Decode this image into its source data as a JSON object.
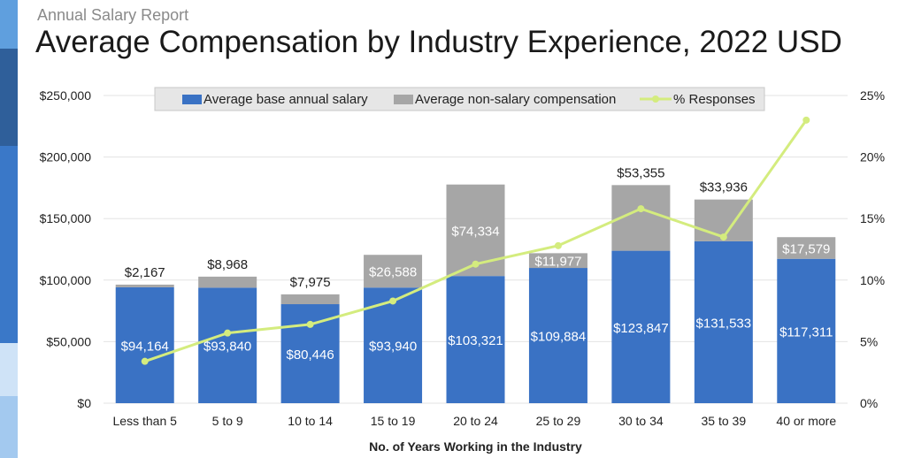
{
  "header": {
    "kicker": "Annual Salary Report",
    "title": "Average Compensation by Industry Experience, 2022 USD"
  },
  "colors": {
    "base_salary": "#3a72c4",
    "non_salary": "#a6a6a6",
    "responses": "#d4ec7e",
    "grid": "#e3e3e3",
    "side_strip": [
      "#5f9fde",
      "#2f5f9a",
      "#3a78c8",
      "#3a78c8",
      "#cfe3f7",
      "#a3c9ef"
    ]
  },
  "chart_data": {
    "type": "bar",
    "stacked": true,
    "categories": [
      "Less than 5",
      "5 to 9",
      "10 to 14",
      "15 to 19",
      "20 to 24",
      "25 to 29",
      "30 to 34",
      "35 to 39",
      "40 or more"
    ],
    "series": [
      {
        "name": "Average base annual salary",
        "kind": "bar",
        "axis": "left",
        "values": [
          94164,
          93840,
          80446,
          93940,
          103321,
          109884,
          123847,
          131533,
          117311
        ],
        "labels": [
          "$94,164",
          "$93,840",
          "$80,446",
          "$93,940",
          "$103,321",
          "$109,884",
          "$123,847",
          "$131,533",
          "$117,311"
        ]
      },
      {
        "name": "Average non-salary compensation",
        "kind": "bar",
        "axis": "left",
        "values": [
          2167,
          8968,
          7975,
          26588,
          74334,
          11977,
          53355,
          33936,
          17579
        ],
        "labels": [
          "$2,167",
          "$8,968",
          "$7,975",
          "$26,588",
          "$74,334",
          "$11,977",
          "$53,355",
          "$33,936",
          "$17,579"
        ],
        "label_position": [
          "above",
          "above",
          "above",
          "inside",
          "inside",
          "inside",
          "above",
          "above",
          "inside"
        ]
      },
      {
        "name": "% Responses",
        "kind": "line",
        "axis": "right",
        "values": [
          3.4,
          5.7,
          6.4,
          8.3,
          11.3,
          12.8,
          15.8,
          13.5,
          23.0
        ]
      }
    ],
    "xlabel": "No. of Years Working in the Industry",
    "ylabel": "",
    "ylim": [
      0,
      250000
    ],
    "yticks": [
      "$0",
      "$50,000",
      "$100,000",
      "$150,000",
      "$200,000",
      "$250,000"
    ],
    "y2lim": [
      0,
      25
    ],
    "y2ticks": [
      "0%",
      "5%",
      "10%",
      "15%",
      "20%",
      "25%"
    ],
    "grid": true,
    "legend": "top"
  }
}
